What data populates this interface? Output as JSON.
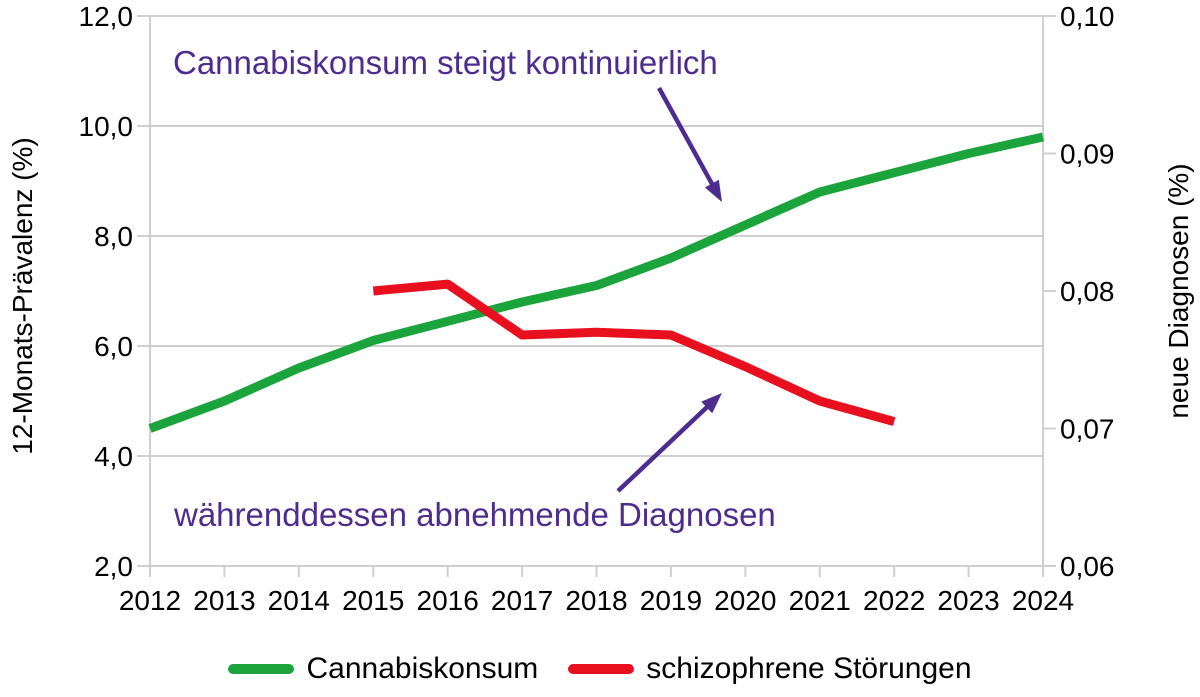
{
  "chart_data": {
    "type": "line",
    "title": "",
    "x_axis": {
      "min": 2012,
      "max": 2024,
      "ticks": [
        2012,
        2013,
        2014,
        2015,
        2016,
        2017,
        2018,
        2019,
        2020,
        2021,
        2022,
        2023,
        2024
      ],
      "tick_labels": [
        "2012",
        "2013",
        "2014",
        "2015",
        "2016",
        "2017",
        "2018",
        "2019",
        "2020",
        "2021",
        "2022",
        "2023",
        "2024"
      ]
    },
    "left_axis": {
      "title": "12-Monats-Prävalenz (%)",
      "min": 2.0,
      "max": 12.0,
      "ticks": [
        2,
        4,
        6,
        8,
        10,
        12
      ],
      "tick_labels": [
        "2,0",
        "4,0",
        "6,0",
        "8,0",
        "10,0",
        "12,0"
      ]
    },
    "right_axis": {
      "title": "neue Diagnosen (%)",
      "min": 0.06,
      "max": 0.1,
      "ticks": [
        0.06,
        0.07,
        0.08,
        0.09,
        0.1
      ],
      "tick_labels": [
        "0,06",
        "0,07",
        "0,08",
        "0,09",
        "0,10"
      ]
    },
    "grid": true,
    "series": [
      {
        "name": "Cannabiskonsum",
        "axis": "left",
        "color": "#1CA43C",
        "x": [
          2012,
          2013,
          2014,
          2015,
          2016,
          2017,
          2018,
          2019,
          2020,
          2021,
          2022,
          2023,
          2024
        ],
        "values": [
          4.5,
          5.0,
          5.6,
          6.1,
          6.45,
          6.8,
          7.1,
          7.6,
          8.2,
          8.8,
          9.15,
          9.5,
          9.8
        ]
      },
      {
        "name": "schizophrene Störungen",
        "axis": "right",
        "color": "#E8101E",
        "x": [
          2015,
          2016,
          2017,
          2018,
          2019,
          2020,
          2021,
          2022
        ],
        "values": [
          0.08,
          0.0805,
          0.0768,
          0.077,
          0.0768,
          0.0745,
          0.072,
          0.0705
        ]
      }
    ],
    "annotations": [
      {
        "text": "Cannabiskonsum steigt kontinuierlich"
      },
      {
        "text": "währenddessen abnehmende Diagnosen"
      }
    ],
    "annotation_color": "#4E2B8F",
    "legend": {
      "position": "bottom",
      "items": [
        {
          "label": "Cannabiskonsum",
          "color": "#1CA43C"
        },
        {
          "label": "schizophrene Störungen",
          "color": "#E8101E"
        }
      ]
    },
    "colors": {
      "grid": "#cfcfcf",
      "text": "#000000",
      "background": "#ffffff"
    }
  }
}
